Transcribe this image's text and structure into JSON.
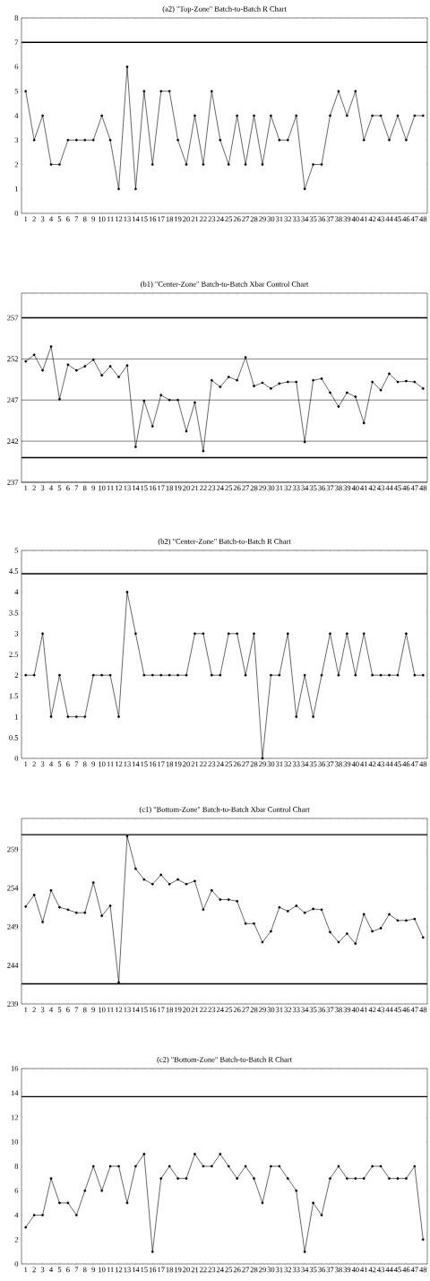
{
  "chart_data": [
    {
      "type": "line",
      "title": "(a2) \"Top-Zone\" Batch-to-Batch R Chart",
      "categories": [
        "1",
        "2",
        "3",
        "4",
        "5",
        "6",
        "7",
        "8",
        "9",
        "10",
        "11",
        "12",
        "13",
        "14",
        "15",
        "16",
        "17",
        "18",
        "19",
        "20",
        "21",
        "22",
        "23",
        "24",
        "25",
        "26",
        "27",
        "28",
        "29",
        "30",
        "31",
        "32",
        "33",
        "34",
        "35",
        "36",
        "37",
        "38",
        "39",
        "40",
        "41",
        "42",
        "43",
        "44",
        "45",
        "46",
        "47",
        "48"
      ],
      "values": [
        5,
        3,
        4,
        2,
        2,
        3,
        3,
        3,
        3,
        4,
        3,
        1,
        6,
        1,
        5,
        2,
        5,
        5,
        3,
        2,
        4,
        2,
        5,
        3,
        2,
        4,
        2,
        4,
        2,
        4,
        3,
        3,
        4,
        1,
        2,
        2,
        4,
        5,
        4,
        5,
        3,
        4,
        4,
        3,
        4,
        3,
        4,
        4
      ],
      "color": "#000000",
      "marker": "circle",
      "ylim": [
        0,
        8
      ],
      "yticks": [
        0,
        1,
        2,
        3,
        4,
        5,
        6,
        7,
        8
      ],
      "ref_lines": [
        {
          "axis": "y",
          "value": 7,
          "color": "#000000"
        }
      ]
    },
    {
      "type": "line",
      "title": "(b1) \"Center-Zone\" Batch-to-Batch Xbar Control Chart",
      "categories": [
        "1",
        "2",
        "3",
        "4",
        "5",
        "6",
        "7",
        "8",
        "9",
        "10",
        "11",
        "12",
        "13",
        "14",
        "15",
        "16",
        "17",
        "18",
        "19",
        "20",
        "21",
        "22",
        "23",
        "24",
        "25",
        "26",
        "27",
        "28",
        "29",
        "30",
        "31",
        "32",
        "33",
        "34",
        "35",
        "36",
        "37",
        "38",
        "39",
        "40",
        "41",
        "42",
        "43",
        "44",
        "45",
        "46",
        "47",
        "48"
      ],
      "values": [
        251.7,
        252.5,
        250.6,
        253.5,
        247.1,
        251.3,
        250.6,
        251.1,
        251.9,
        250.0,
        251.1,
        249.8,
        251.2,
        241.3,
        246.9,
        243.8,
        247.6,
        247.0,
        247.0,
        243.2,
        246.7,
        240.8,
        249.4,
        248.6,
        249.8,
        249.4,
        252.2,
        248.7,
        249.1,
        248.4,
        249.0,
        249.2,
        249.2,
        241.9,
        249.4,
        249.6,
        247.9,
        246.2,
        247.9,
        247.4,
        244.2,
        249.2,
        248.2,
        250.2,
        249.2,
        249.3,
        249.2,
        248.4
      ],
      "color": "#000000",
      "marker": "circle",
      "grid": "y",
      "ylim": [
        237,
        260
      ],
      "yticks": [
        237,
        242,
        247,
        252,
        257
      ],
      "ref_lines": [
        {
          "axis": "y",
          "value": 257,
          "color": "#000000"
        },
        {
          "axis": "y",
          "value": 240,
          "color": "#000000"
        }
      ]
    },
    {
      "type": "line",
      "title": "(b2) \"Center-Zone\" Batch-to-Batch R Chart",
      "categories": [
        "1",
        "2",
        "3",
        "4",
        "5",
        "6",
        "7",
        "8",
        "9",
        "10",
        "11",
        "12",
        "13",
        "14",
        "15",
        "16",
        "17",
        "18",
        "19",
        "20",
        "21",
        "22",
        "23",
        "24",
        "25",
        "26",
        "27",
        "28",
        "29",
        "30",
        "31",
        "32",
        "33",
        "34",
        "35",
        "36",
        "37",
        "38",
        "39",
        "40",
        "41",
        "42",
        "43",
        "44",
        "45",
        "46",
        "47",
        "48"
      ],
      "values": [
        2,
        2,
        3,
        1,
        2,
        1,
        1,
        1,
        2,
        2,
        2,
        1,
        4,
        3,
        2,
        2,
        2,
        2,
        2,
        2,
        3,
        3,
        2,
        2,
        3,
        3,
        2,
        3,
        0,
        2,
        2,
        3,
        1,
        2,
        1,
        2,
        3,
        2,
        3,
        2,
        3,
        2,
        2,
        2,
        2,
        3,
        2,
        2
      ],
      "color": "#000000",
      "marker": "circle",
      "ylim": [
        0,
        5
      ],
      "yticks": [
        0,
        0.5,
        1,
        1.5,
        2,
        2.5,
        3,
        3.5,
        4,
        4.5,
        5
      ],
      "ref_lines": [
        {
          "axis": "y",
          "value": 4.44,
          "color": "#000000"
        }
      ]
    },
    {
      "type": "line",
      "title": "(c1) \"Bottom-Zone\" Batch-to-Batch Xbar Control Chart",
      "categories": [
        "1",
        "2",
        "3",
        "4",
        "5",
        "6",
        "7",
        "8",
        "9",
        "10",
        "11",
        "12",
        "13",
        "14",
        "15",
        "16",
        "17",
        "18",
        "19",
        "20",
        "21",
        "22",
        "23",
        "24",
        "25",
        "26",
        "27",
        "28",
        "29",
        "30",
        "31",
        "32",
        "33",
        "34",
        "35",
        "36",
        "37",
        "38",
        "39",
        "40",
        "41",
        "42",
        "43",
        "44",
        "45",
        "46",
        "47",
        "48"
      ],
      "values": [
        251.6,
        253.1,
        249.6,
        253.7,
        251.5,
        251.2,
        250.8,
        250.8,
        254.7,
        250.4,
        251.7,
        241.8,
        260.7,
        256.5,
        255.1,
        254.5,
        255.7,
        254.5,
        255.1,
        254.5,
        254.9,
        251.2,
        253.7,
        252.5,
        252.5,
        252.3,
        249.4,
        249.4,
        247.0,
        248.4,
        251.5,
        251.0,
        251.7,
        250.8,
        251.3,
        251.2,
        248.3,
        247.0,
        248.1,
        246.8,
        250.6,
        248.4,
        248.8,
        250.6,
        249.8,
        249.8,
        250.0,
        247.6
      ],
      "color": "#000000",
      "marker": "circle",
      "ylim": [
        239,
        263
      ],
      "yticks": [
        239,
        244,
        249,
        254,
        259
      ],
      "ref_lines": [
        {
          "axis": "y",
          "value": 260.9,
          "color": "#000000"
        },
        {
          "axis": "y",
          "value": 241.6,
          "color": "#000000"
        }
      ]
    },
    {
      "type": "line",
      "title": "(c2) \"Bottom-Zone\" Batch-to-Batch R Chart",
      "categories": [
        "1",
        "2",
        "3",
        "4",
        "5",
        "6",
        "7",
        "8",
        "9",
        "10",
        "11",
        "12",
        "13",
        "14",
        "15",
        "16",
        "17",
        "18",
        "19",
        "20",
        "21",
        "22",
        "23",
        "24",
        "25",
        "26",
        "27",
        "28",
        "29",
        "30",
        "31",
        "32",
        "33",
        "34",
        "35",
        "36",
        "37",
        "38",
        "39",
        "40",
        "41",
        "42",
        "43",
        "44",
        "45",
        "46",
        "47",
        "48"
      ],
      "values": [
        3,
        4,
        4,
        7,
        5,
        5,
        4,
        6,
        8,
        6,
        8,
        8,
        5,
        8,
        9,
        1,
        7,
        8,
        7,
        7,
        9,
        8,
        8,
        9,
        8,
        7,
        8,
        7,
        5,
        8,
        8,
        7,
        6,
        1,
        5,
        4,
        7,
        8,
        7,
        7,
        7,
        8,
        8,
        7,
        7,
        7,
        8,
        2
      ],
      "color": "#000000",
      "marker": "circle",
      "ylim": [
        0,
        16
      ],
      "yticks": [
        0,
        2,
        4,
        6,
        8,
        10,
        12,
        14,
        16
      ],
      "ref_lines": [
        {
          "axis": "y",
          "value": 13.7,
          "color": "#000000"
        }
      ]
    }
  ]
}
